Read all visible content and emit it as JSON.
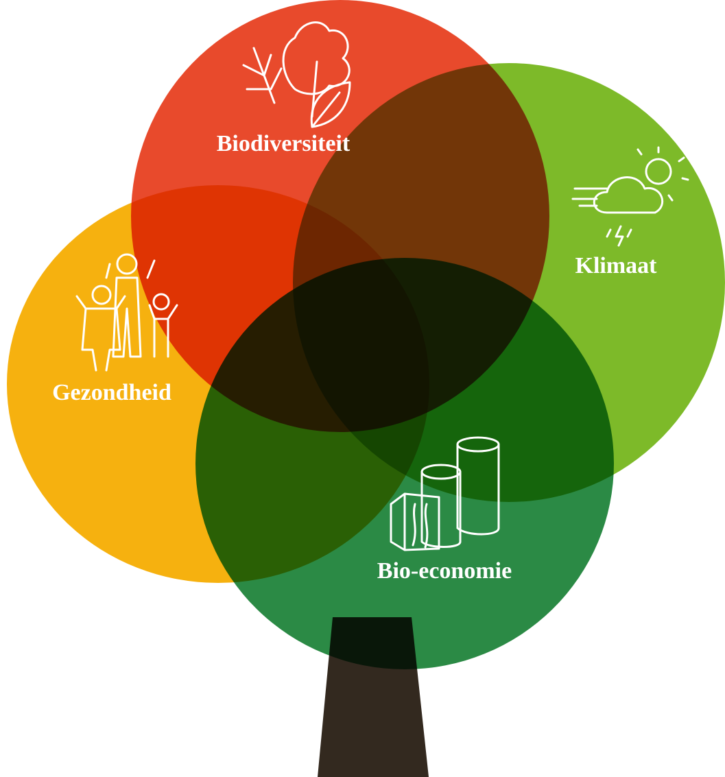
{
  "nodes": [
    {
      "label": "Biodiversiteit"
    },
    {
      "label": "Klimaat"
    },
    {
      "label": "Gezondheid"
    },
    {
      "label": "Bio-economie"
    }
  ]
}
